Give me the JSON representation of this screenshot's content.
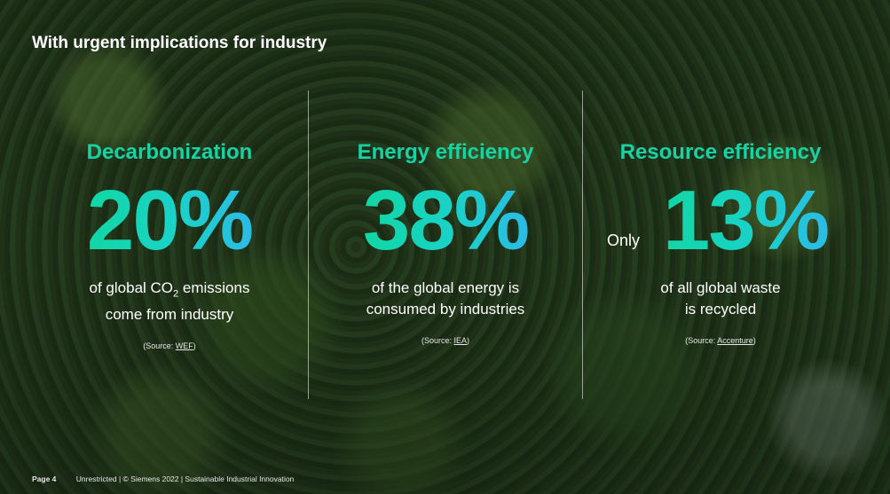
{
  "title": "With urgent implications for industry",
  "columns": [
    {
      "heading": "Decarbonization",
      "stat": "20%",
      "prefix": "",
      "desc_line1_pre": "of global CO",
      "desc_line1_sub": "2",
      "desc_line1_post": " emissions",
      "desc_line2": "come from industry",
      "source_pre": "(Source: ",
      "source_link": "WEF",
      "source_post": ")"
    },
    {
      "heading": "Energy efficiency",
      "stat": "38%",
      "prefix": "",
      "desc_line1": "of the global energy is",
      "desc_line2": "consumed by industries",
      "source_pre": "(Source: ",
      "source_link": "IEA",
      "source_post": ")"
    },
    {
      "heading": "Resource efficiency",
      "stat": "13%",
      "prefix": "Only",
      "desc_line1": "of all global waste",
      "desc_line2": "is recycled",
      "source_pre": "(Source: ",
      "source_link": "Accenture",
      "source_post": ")"
    }
  ],
  "footer": {
    "page": "Page 4",
    "text": "Unrestricted | © Siemens 2022 | Sustainable Industrial Innovation"
  },
  "colors": {
    "accent_green": "#17d3a4",
    "accent_blue": "#2bbbe6"
  }
}
